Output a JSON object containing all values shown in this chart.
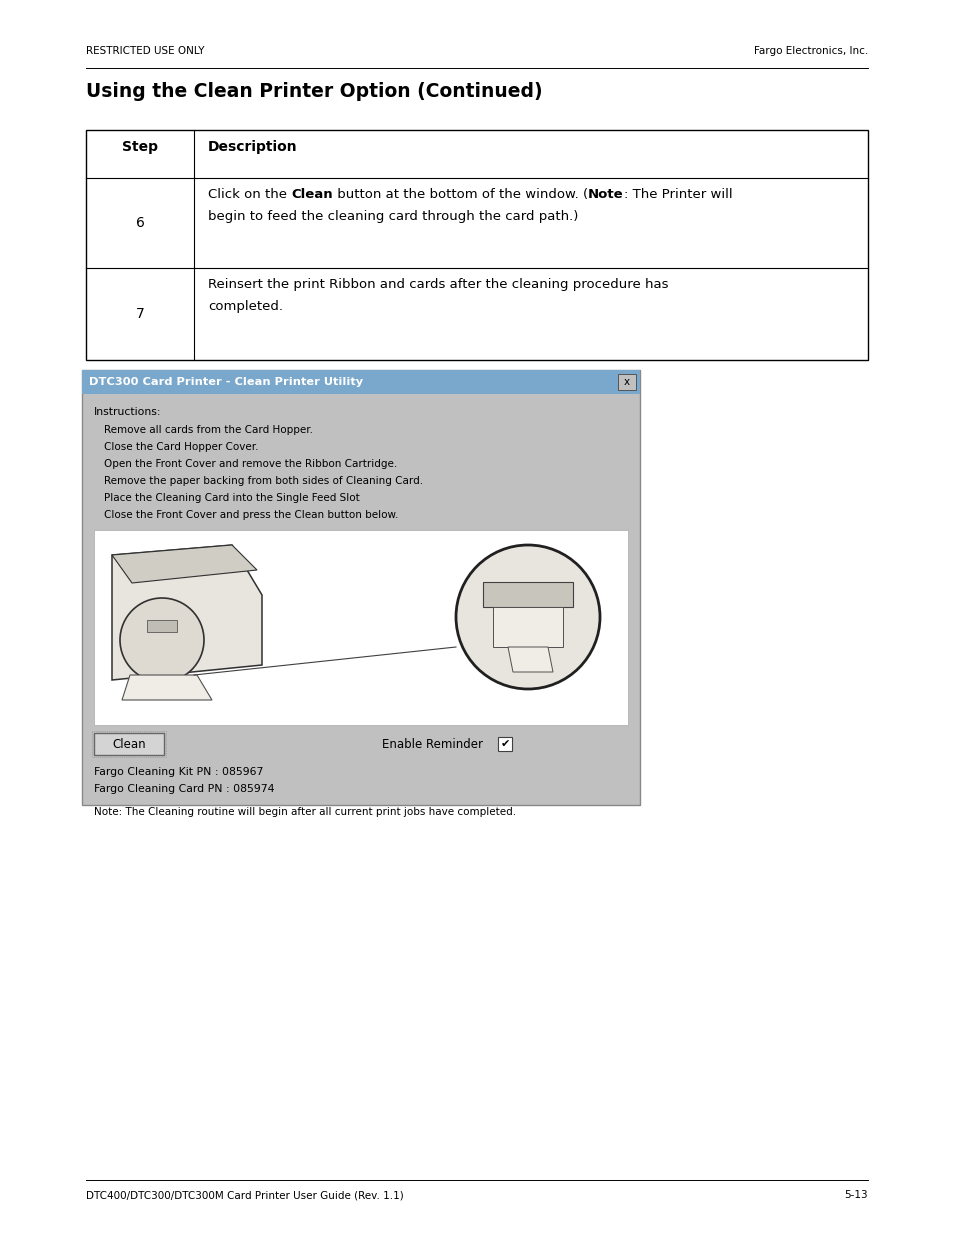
{
  "bg_color": "#ffffff",
  "header_left": "RESTRICTED USE ONLY",
  "header_right": "Fargo Electronics, Inc.",
  "title": "Using the Clean Printer Option (Continued)",
  "table_header_step": "Step",
  "table_header_desc": "Description",
  "step6": "6",
  "step6_pre": "Click on the ",
  "step6_bold1": "Clean",
  "step6_mid": " button at the bottom of the window. (",
  "step6_bold2": "Note",
  "step6_post": ": The Printer will",
  "step6_line2": "begin to feed the cleaning card through the card path.)",
  "step7": "7",
  "step7_line1": "Reinsert the print Ribbon and cards after the cleaning procedure has",
  "step7_line2": "completed.",
  "dialog_title": "DTC300 Card Printer - Clean Printer Utility",
  "dialog_bg": "#c0c0c0",
  "dialog_title_bg_top": "#8ab4d8",
  "dialog_title_bg_bot": "#5580a8",
  "instr_label": "Instructions:",
  "instr_lines": [
    "Remove all cards from the Card Hopper.",
    "Close the Card Hopper Cover.",
    "Open the Front Cover and remove the Ribbon Cartridge.",
    "Remove the paper backing from both sides of Cleaning Card.",
    "Place the Cleaning Card into the Single Feed Slot",
    "Close the Front Cover and press the Clean button below."
  ],
  "clean_btn_label": "Clean",
  "enable_reminder_label": "Enable Reminder",
  "bottom_line1": "Fargo Cleaning Kit PN : 085967",
  "bottom_line2": "Fargo Cleaning Card PN : 085974",
  "bottom_line3": "Note: The Cleaning routine will begin after all current print jobs have completed.",
  "footer_left": "DTC400/DTC300/DTC300M Card Printer User Guide (Rev. 1.1)",
  "footer_right": "5-13"
}
